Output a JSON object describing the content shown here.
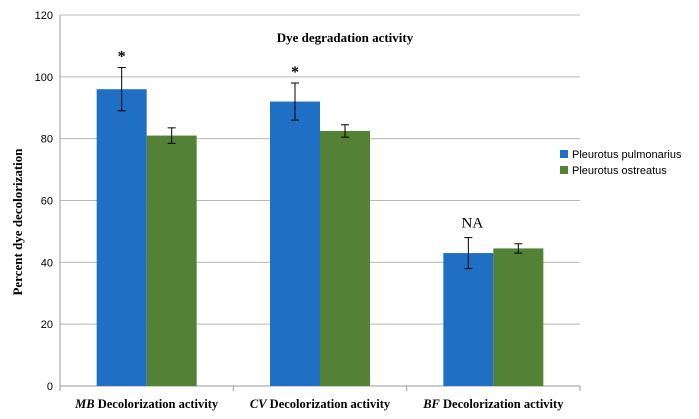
{
  "chart_data": {
    "type": "bar",
    "title": "Dye degradation activity",
    "xlabel": "",
    "ylabel": "Percent dye decolorization",
    "ylim": [
      0,
      120
    ],
    "yticks": [
      0,
      20,
      40,
      60,
      80,
      100,
      120
    ],
    "grid": true,
    "legend_position": "right",
    "categories": [
      {
        "italic": "MB",
        "rest": " Decolorization activity"
      },
      {
        "italic": "CV",
        "rest": " Decolorization activity"
      },
      {
        "italic": "BF",
        "rest": " Decolorization activity"
      }
    ],
    "series": [
      {
        "name": "Pleurotus pulmonarius",
        "color": "#1f6fc5",
        "values": [
          96,
          92,
          43
        ],
        "errors": [
          7,
          6,
          5
        ]
      },
      {
        "name": "Pleurotus ostreatus",
        "color": "#538135",
        "values": [
          81,
          82.5,
          44.5
        ],
        "errors": [
          2.5,
          2,
          1.5
        ]
      }
    ],
    "annotations": [
      "*",
      "*",
      "NA"
    ]
  }
}
